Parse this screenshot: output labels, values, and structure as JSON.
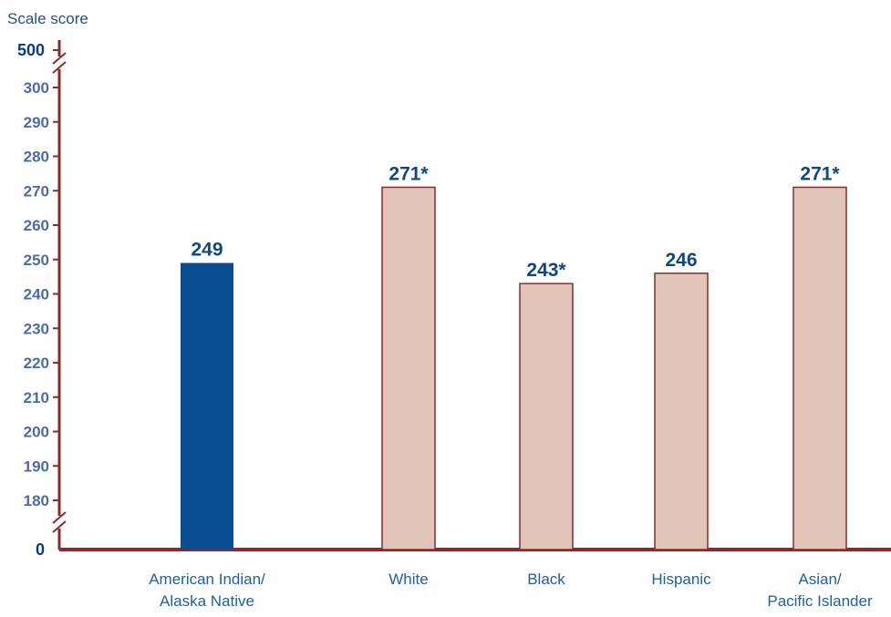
{
  "chart_data": {
    "type": "bar",
    "ylabel": "Scale score",
    "y_ticks": [
      "500",
      "300",
      "290",
      "280",
      "270",
      "260",
      "250",
      "240",
      "230",
      "220",
      "210",
      "200",
      "190",
      "180",
      "0"
    ],
    "ylim": [
      170,
      305
    ],
    "axis_breaks": "broken y-axis: 0, 180–300, 500",
    "categories": [
      {
        "lines": [
          "American Indian/",
          "Alaska Native"
        ],
        "value": 249,
        "label": "249",
        "highlight": true
      },
      {
        "lines": [
          "White"
        ],
        "value": 271,
        "label": "271*",
        "highlight": false
      },
      {
        "lines": [
          "Black"
        ],
        "value": 243,
        "label": "243*",
        "highlight": false
      },
      {
        "lines": [
          "Hispanic"
        ],
        "value": 246,
        "label": "246",
        "highlight": false
      },
      {
        "lines": [
          "Asian/",
          "Pacific Islander"
        ],
        "value": 271,
        "label": "271*",
        "highlight": false
      }
    ],
    "colors": {
      "axis": "#8b2a2a",
      "highlight_fill": "#084d8f",
      "bar_fill": "#e0c5b8",
      "bar_stroke": "#8b2a2a"
    },
    "grid": false
  }
}
